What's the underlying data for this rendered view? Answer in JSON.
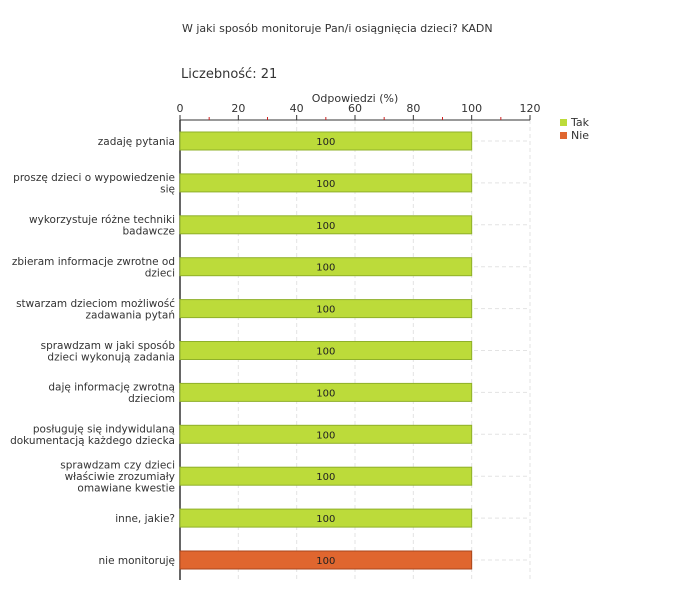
{
  "header": {
    "title": "W jaki sposób monitoruje Pan/i osiągnięcia dzieci?  KADN",
    "count_label": "Liczebność:",
    "count_value": "21"
  },
  "chart_data": {
    "type": "bar",
    "orientation": "horizontal",
    "xlabel": "Odpowiedzi (%)",
    "xlim": [
      0,
      120
    ],
    "xticks": [
      0,
      20,
      40,
      60,
      80,
      100,
      120
    ],
    "grid": true,
    "legend_position": "top-right",
    "categories": [
      [
        "zadaję pytania"
      ],
      [
        "proszę dzieci o wypowiedzenie",
        "się"
      ],
      [
        "wykorzystuje różne techniki",
        "badawcze"
      ],
      [
        "zbieram informacje zwrotne od",
        "dzieci"
      ],
      [
        "stwarzam dzieciom możliwość",
        "zadawania pytań"
      ],
      [
        "sprawdzam w jaki sposób",
        "dzieci wykonują zadania"
      ],
      [
        "daję informację zwrotną",
        "dzieciom"
      ],
      [
        "posługuję się indywidulaną",
        "dokumentacją każdego dziecka"
      ],
      [
        "sprawdzam czy dzieci",
        "właściwie zrozumiały",
        "omawiane kwestie"
      ],
      [
        "inne, jakie?"
      ],
      [
        "nie monitoruję"
      ]
    ],
    "series": [
      {
        "name": "Tak",
        "color": "#bcdb3a",
        "values": [
          100,
          100,
          100,
          100,
          100,
          100,
          100,
          100,
          100,
          100,
          null
        ]
      },
      {
        "name": "Nie",
        "color": "#e0662f",
        "values": [
          null,
          null,
          null,
          null,
          null,
          null,
          null,
          null,
          null,
          null,
          100
        ]
      }
    ],
    "data_labels": [
      "100",
      "100",
      "100",
      "100",
      "100",
      "100",
      "100",
      "100",
      "100",
      "100",
      "100"
    ]
  }
}
